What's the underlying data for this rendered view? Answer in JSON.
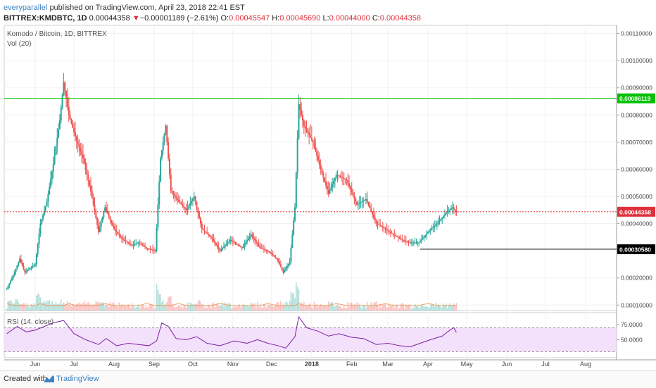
{
  "header": {
    "author": "everyparallel",
    "published_text": "published on TradingView.com, April 23, 2018 22:41 EST",
    "symbol": "BITTREX:KMDBTC, 1D",
    "last": "0.00044358",
    "change_arrow": "▼",
    "change": "−0.00001189 (−2.61%)",
    "o_label": "O:",
    "o_value": "0.00045547",
    "h_label": "H:",
    "h_value": "0.00045690",
    "l_label": "L:",
    "l_value": "0.00044000",
    "c_label": "C:",
    "c_value": "0.00044358"
  },
  "footer": {
    "created_with": "Created with",
    "brand": "TradingView"
  },
  "colors": {
    "up": "#26a69a",
    "down": "#ef5350",
    "rsi": "#7b1fa2",
    "rsi_band": "#f3e0fa",
    "resistance": "#00c000",
    "support": "#000000",
    "last": "#e0313b"
  },
  "chart_data": {
    "type": "candlestick",
    "title": "Komodo / Bitcoin, 1D, BITTREX",
    "volume_label": "Vol (20)",
    "y_ticks": [
      "0.00110000",
      "0.00100000",
      "0.00090000",
      "0.00080000",
      "0.00070000",
      "0.00060000",
      "0.00050000",
      "0.00040000",
      "0.00020000",
      "0.00010000"
    ],
    "y_range": [
      8e-05,
      0.00113
    ],
    "x_ticks": [
      "Jun",
      "Jul",
      "Aug",
      "Sep",
      "Oct",
      "Nov",
      "Dec",
      "2018",
      "Feb",
      "Mar",
      "Apr",
      "May",
      "Jun",
      "Jul",
      "Aug"
    ],
    "levels": [
      {
        "name": "resistance",
        "value": 0.00086119,
        "label": "0.00086119"
      },
      {
        "name": "last-price",
        "value": 0.00044358,
        "label": "0.00044358"
      },
      {
        "name": "support",
        "value": 0.0003058,
        "label": "0.00030580"
      }
    ],
    "close_series": [
      [
        "2017-05-10",
        0.00016
      ],
      [
        "2017-05-15",
        0.00021
      ],
      [
        "2017-05-20",
        0.00027
      ],
      [
        "2017-05-24",
        0.00022
      ],
      [
        "2017-06-01",
        0.00025
      ],
      [
        "2017-06-05",
        0.0004
      ],
      [
        "2017-06-10",
        0.00048
      ],
      [
        "2017-06-15",
        0.00062
      ],
      [
        "2017-06-20",
        0.00078
      ],
      [
        "2017-06-23",
        0.00092
      ],
      [
        "2017-06-27",
        0.0008
      ],
      [
        "2017-07-02",
        0.00072
      ],
      [
        "2017-07-08",
        0.00064
      ],
      [
        "2017-07-14",
        0.00052
      ],
      [
        "2017-07-20",
        0.00037
      ],
      [
        "2017-07-25",
        0.00046
      ],
      [
        "2017-08-01",
        0.00038
      ],
      [
        "2017-08-08",
        0.00034
      ],
      [
        "2017-08-15",
        0.00032
      ],
      [
        "2017-08-20",
        0.00033
      ],
      [
        "2017-08-26",
        0.00031
      ],
      [
        "2017-09-02",
        0.0003
      ],
      [
        "2017-09-06",
        0.00064
      ],
      [
        "2017-09-10",
        0.00076
      ],
      [
        "2017-09-14",
        0.00052
      ],
      [
        "2017-09-20",
        0.00048
      ],
      [
        "2017-09-26",
        0.00045
      ],
      [
        "2017-10-02",
        0.0005
      ],
      [
        "2017-10-08",
        0.00038
      ],
      [
        "2017-10-15",
        0.00035
      ],
      [
        "2017-10-22",
        0.0003
      ],
      [
        "2017-10-30",
        0.00034
      ],
      [
        "2017-11-08",
        0.00031
      ],
      [
        "2017-11-15",
        0.00036
      ],
      [
        "2017-11-22",
        0.00031
      ],
      [
        "2017-11-28",
        0.0003
      ],
      [
        "2017-12-05",
        0.00027
      ],
      [
        "2017-12-10",
        0.00022
      ],
      [
        "2017-12-15",
        0.00026
      ],
      [
        "2017-12-19",
        0.00046
      ],
      [
        "2017-12-22",
        0.00084
      ],
      [
        "2017-12-26",
        0.00076
      ],
      [
        "2018-01-02",
        0.0007
      ],
      [
        "2018-01-08",
        0.0006
      ],
      [
        "2018-01-14",
        0.00051
      ],
      [
        "2018-01-20",
        0.00058
      ],
      [
        "2018-01-28",
        0.00056
      ],
      [
        "2018-02-05",
        0.00047
      ],
      [
        "2018-02-12",
        0.00049
      ],
      [
        "2018-02-20",
        0.0004
      ],
      [
        "2018-02-27",
        0.00038
      ],
      [
        "2018-03-05",
        0.00036
      ],
      [
        "2018-03-12",
        0.00034
      ],
      [
        "2018-03-18",
        0.00033
      ],
      [
        "2018-03-25",
        0.00033
      ],
      [
        "2018-04-01",
        0.00037
      ],
      [
        "2018-04-08",
        0.0004
      ],
      [
        "2018-04-15",
        0.00044
      ],
      [
        "2018-04-20",
        0.00046
      ],
      [
        "2018-04-23",
        0.00044
      ]
    ],
    "rsi": {
      "label": "RSI (14, close)",
      "ticks": [
        "75.0000",
        "50.0000"
      ],
      "band": [
        30,
        70
      ],
      "range": [
        20,
        95
      ],
      "series": [
        [
          "2017-05-10",
          60
        ],
        [
          "2017-05-18",
          72
        ],
        [
          "2017-05-25",
          63
        ],
        [
          "2017-06-01",
          66
        ],
        [
          "2017-06-08",
          72
        ],
        [
          "2017-06-15",
          78
        ],
        [
          "2017-06-23",
          82
        ],
        [
          "2017-07-01",
          60
        ],
        [
          "2017-07-10",
          50
        ],
        [
          "2017-07-20",
          42
        ],
        [
          "2017-07-26",
          52
        ],
        [
          "2017-08-03",
          40
        ],
        [
          "2017-08-12",
          44
        ],
        [
          "2017-08-20",
          42
        ],
        [
          "2017-08-28",
          40
        ],
        [
          "2017-09-03",
          48
        ],
        [
          "2017-09-07",
          78
        ],
        [
          "2017-09-12",
          72
        ],
        [
          "2017-09-18",
          52
        ],
        [
          "2017-09-26",
          50
        ],
        [
          "2017-10-04",
          55
        ],
        [
          "2017-10-12",
          44
        ],
        [
          "2017-10-22",
          40
        ],
        [
          "2017-11-02",
          48
        ],
        [
          "2017-11-12",
          44
        ],
        [
          "2017-11-20",
          50
        ],
        [
          "2017-11-28",
          44
        ],
        [
          "2017-12-06",
          40
        ],
        [
          "2017-12-12",
          36
        ],
        [
          "2017-12-19",
          55
        ],
        [
          "2017-12-22",
          88
        ],
        [
          "2017-12-28",
          70
        ],
        [
          "2018-01-06",
          64
        ],
        [
          "2018-01-14",
          56
        ],
        [
          "2018-01-22",
          60
        ],
        [
          "2018-02-01",
          54
        ],
        [
          "2018-02-10",
          52
        ],
        [
          "2018-02-20",
          42
        ],
        [
          "2018-03-01",
          44
        ],
        [
          "2018-03-10",
          40
        ],
        [
          "2018-03-18",
          38
        ],
        [
          "2018-03-26",
          44
        ],
        [
          "2018-04-03",
          50
        ],
        [
          "2018-04-12",
          56
        ],
        [
          "2018-04-18",
          66
        ],
        [
          "2018-04-21",
          70
        ],
        [
          "2018-04-23",
          62
        ]
      ]
    }
  }
}
